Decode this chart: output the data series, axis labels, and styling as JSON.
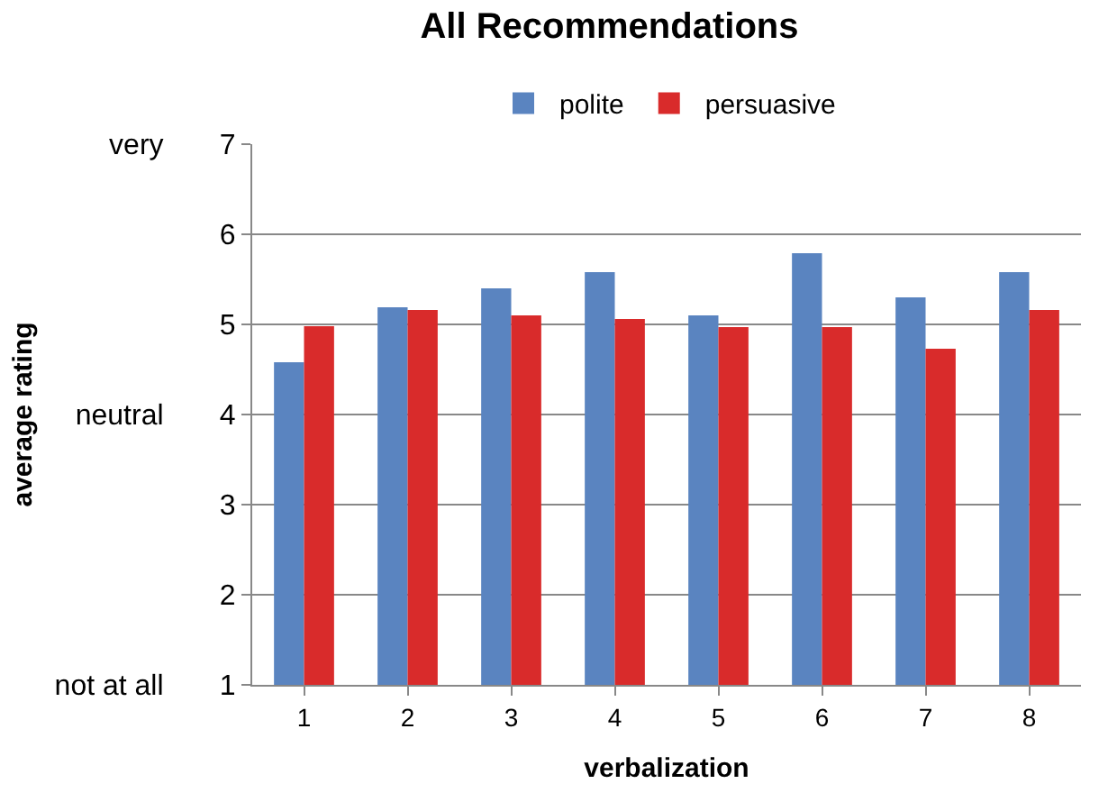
{
  "chart_data": {
    "type": "bar",
    "title": "All Recommendations",
    "xlabel": "verbalization",
    "ylabel": "average rating",
    "categories": [
      "1",
      "2",
      "3",
      "4",
      "5",
      "6",
      "7",
      "8"
    ],
    "series": [
      {
        "name": "polite",
        "color": "#5a84c0",
        "values": [
          4.58,
          5.19,
          5.4,
          5.58,
          5.1,
          5.79,
          5.3,
          5.58
        ]
      },
      {
        "name": "persuasive",
        "color": "#d92b2b",
        "values": [
          4.98,
          5.16,
          5.1,
          5.06,
          4.97,
          4.97,
          4.73,
          5.16
        ]
      }
    ],
    "ylim": [
      1,
      7
    ],
    "yticks": [
      {
        "value": 1,
        "label": "not at all 1"
      },
      2,
      3,
      {
        "value": 4,
        "label": "neutral 4"
      },
      5,
      6,
      {
        "value": 7,
        "label": "very 7"
      }
    ],
    "grid": "y",
    "legend": "top"
  }
}
